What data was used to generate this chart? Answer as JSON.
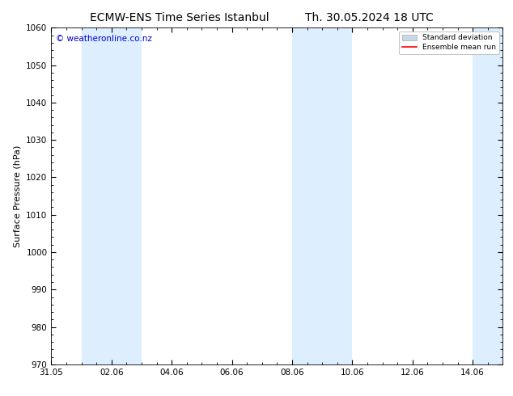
{
  "title_left": "ECMW-ENS Time Series Istanbul",
  "title_right": "Th. 30.05.2024 18 UTC",
  "ylabel": "Surface Pressure (hPa)",
  "ylim": [
    970,
    1060
  ],
  "yticks": [
    970,
    980,
    990,
    1000,
    1010,
    1020,
    1030,
    1040,
    1050,
    1060
  ],
  "xtick_labels": [
    "31.05",
    "02.06",
    "04.06",
    "06.06",
    "08.06",
    "10.06",
    "12.06",
    "14.06"
  ],
  "xtick_positions_days": [
    0,
    2,
    4,
    6,
    8,
    10,
    12,
    14
  ],
  "total_days": 15,
  "shaded_bands": [
    {
      "start_day": 1,
      "end_day": 3
    },
    {
      "start_day": 8,
      "end_day": 10
    },
    {
      "start_day": 14,
      "end_day": 15
    }
  ],
  "shade_color": "#ddeeff",
  "background_color": "#ffffff",
  "watermark_text": "© weatheronline.co.nz",
  "watermark_color": "#0000cc",
  "legend_std_dev_color": "#c8d8e8",
  "legend_mean_run_color": "#ff0000",
  "title_fontsize": 10,
  "label_fontsize": 8,
  "tick_fontsize": 7.5,
  "watermark_fontsize": 7.5
}
